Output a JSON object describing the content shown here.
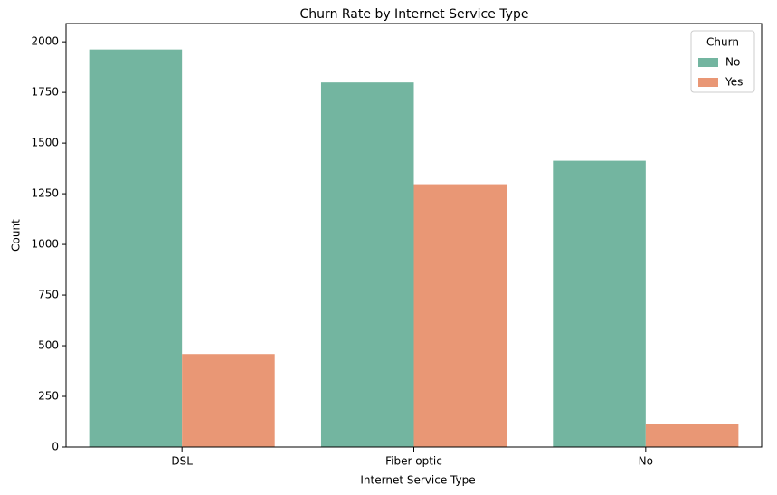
{
  "chart_data": {
    "type": "bar",
    "title": "Churn Rate by Internet Service Type",
    "x_label": "Internet Service Type",
    "y_label": "Count",
    "categories": [
      "DSL",
      "Fiber optic",
      "No"
    ],
    "legend_title": "Churn",
    "legend_position": "upper right",
    "series": [
      {
        "name": "No",
        "color": "#73b5a0",
        "values": [
          1962,
          1799,
          1413
        ]
      },
      {
        "name": "Yes",
        "color": "#e99775",
        "values": [
          459,
          1297,
          113
        ]
      }
    ],
    "ylim": [
      0,
      2090
    ],
    "yticks": [
      0,
      250,
      500,
      750,
      1000,
      1250,
      1500,
      1750,
      2000
    ]
  }
}
